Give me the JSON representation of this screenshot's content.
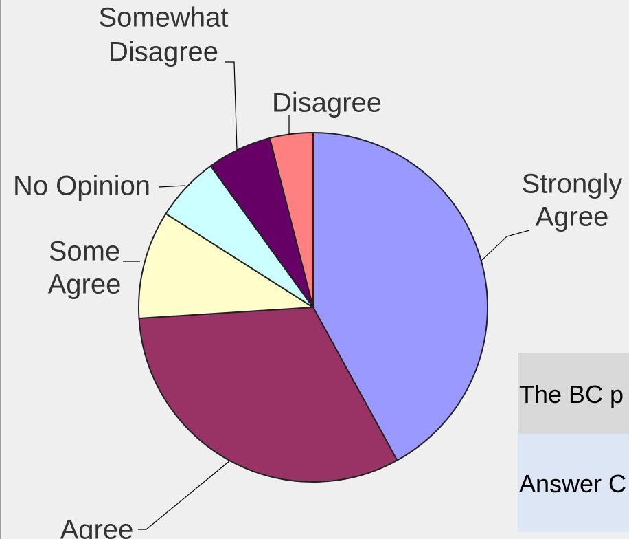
{
  "chart_data": {
    "type": "pie",
    "title": "",
    "slices": [
      {
        "label": "Strongly Agree",
        "label_lines": [
          "Strongly",
          "Agree"
        ],
        "value": 42,
        "color": "#9999ff"
      },
      {
        "label": "Agree",
        "label_lines": [
          "Agree"
        ],
        "value": 32,
        "color": "#993366"
      },
      {
        "label": "Some Agree",
        "label_lines": [
          "Some",
          "Agree"
        ],
        "value": 10,
        "color": "#ffffcc"
      },
      {
        "label": "No Opinion",
        "label_lines": [
          "No Opinion"
        ],
        "value": 6,
        "color": "#ccffff"
      },
      {
        "label": "Somewhat Disagree",
        "label_lines": [
          "Somewhat",
          "Disagree"
        ],
        "value": 6,
        "color": "#660066"
      },
      {
        "label": "Disagree",
        "label_lines": [
          "Disagree"
        ],
        "value": 4,
        "color": "#ff8080"
      }
    ]
  },
  "table": {
    "question_text": "The BC p",
    "answer_text": "Answer C"
  }
}
